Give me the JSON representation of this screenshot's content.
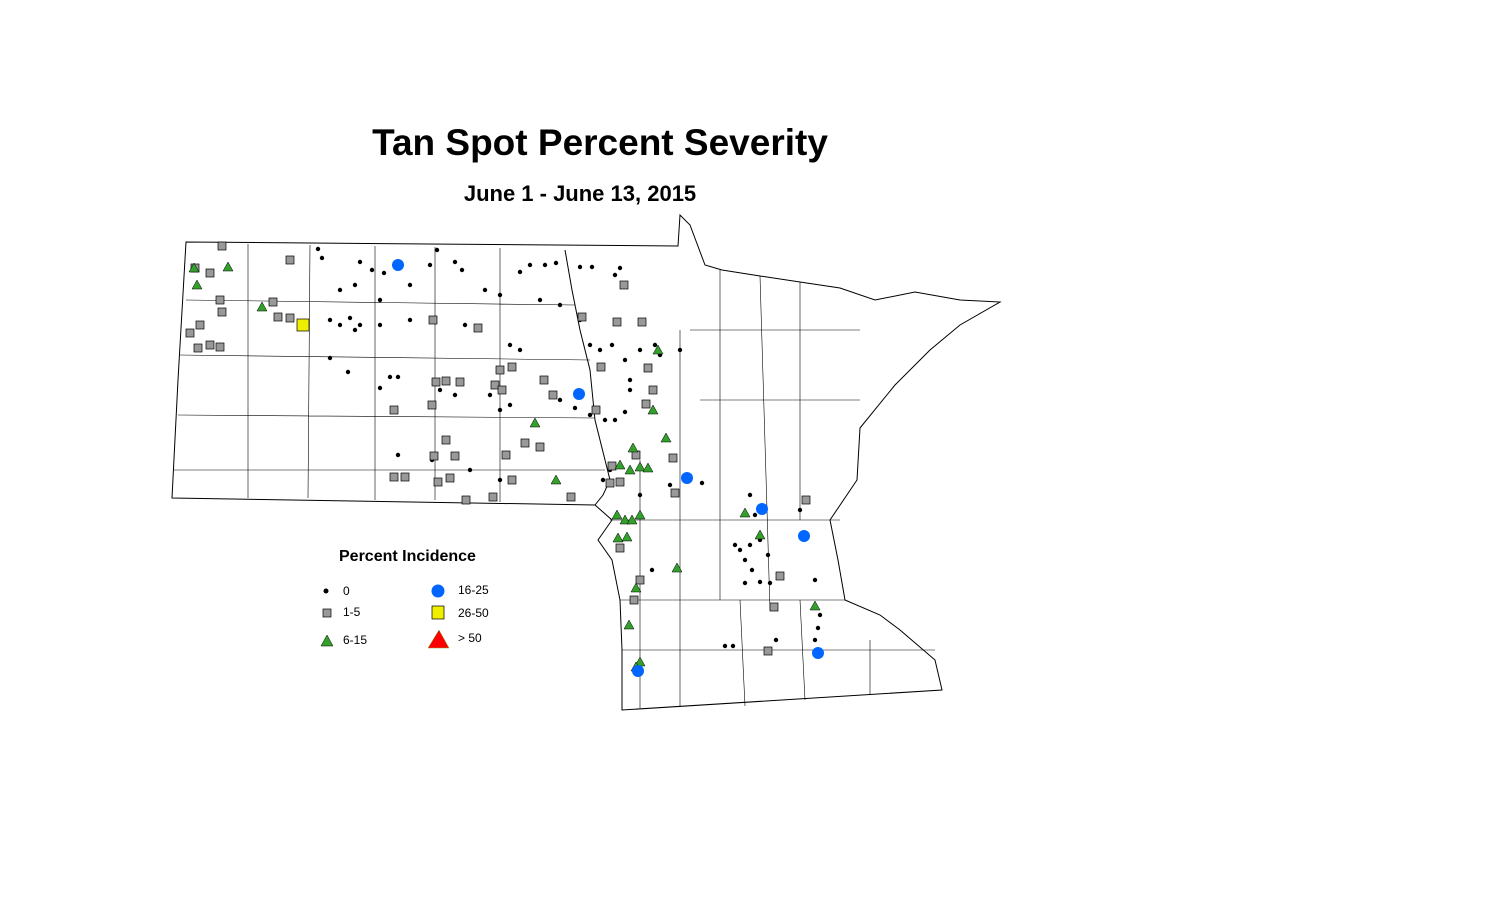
{
  "title": "Tan Spot Percent Severity",
  "subtitle": "June 1 - June 13, 2015",
  "legend": {
    "title": "Percent Incidence",
    "items": [
      {
        "label": "0",
        "symbol": "small-dot",
        "color": "#000000"
      },
      {
        "label": "1-5",
        "symbol": "square",
        "color": "#999999"
      },
      {
        "label": "6-15",
        "symbol": "triangle",
        "color": "#33a02c"
      },
      {
        "label": "16-25",
        "symbol": "circle",
        "color": "#0066ff"
      },
      {
        "label": "26-50",
        "symbol": "square",
        "color": "#eeee00"
      },
      {
        "label": "> 50",
        "symbol": "triangle",
        "color": "#ff0000"
      }
    ]
  }
}
